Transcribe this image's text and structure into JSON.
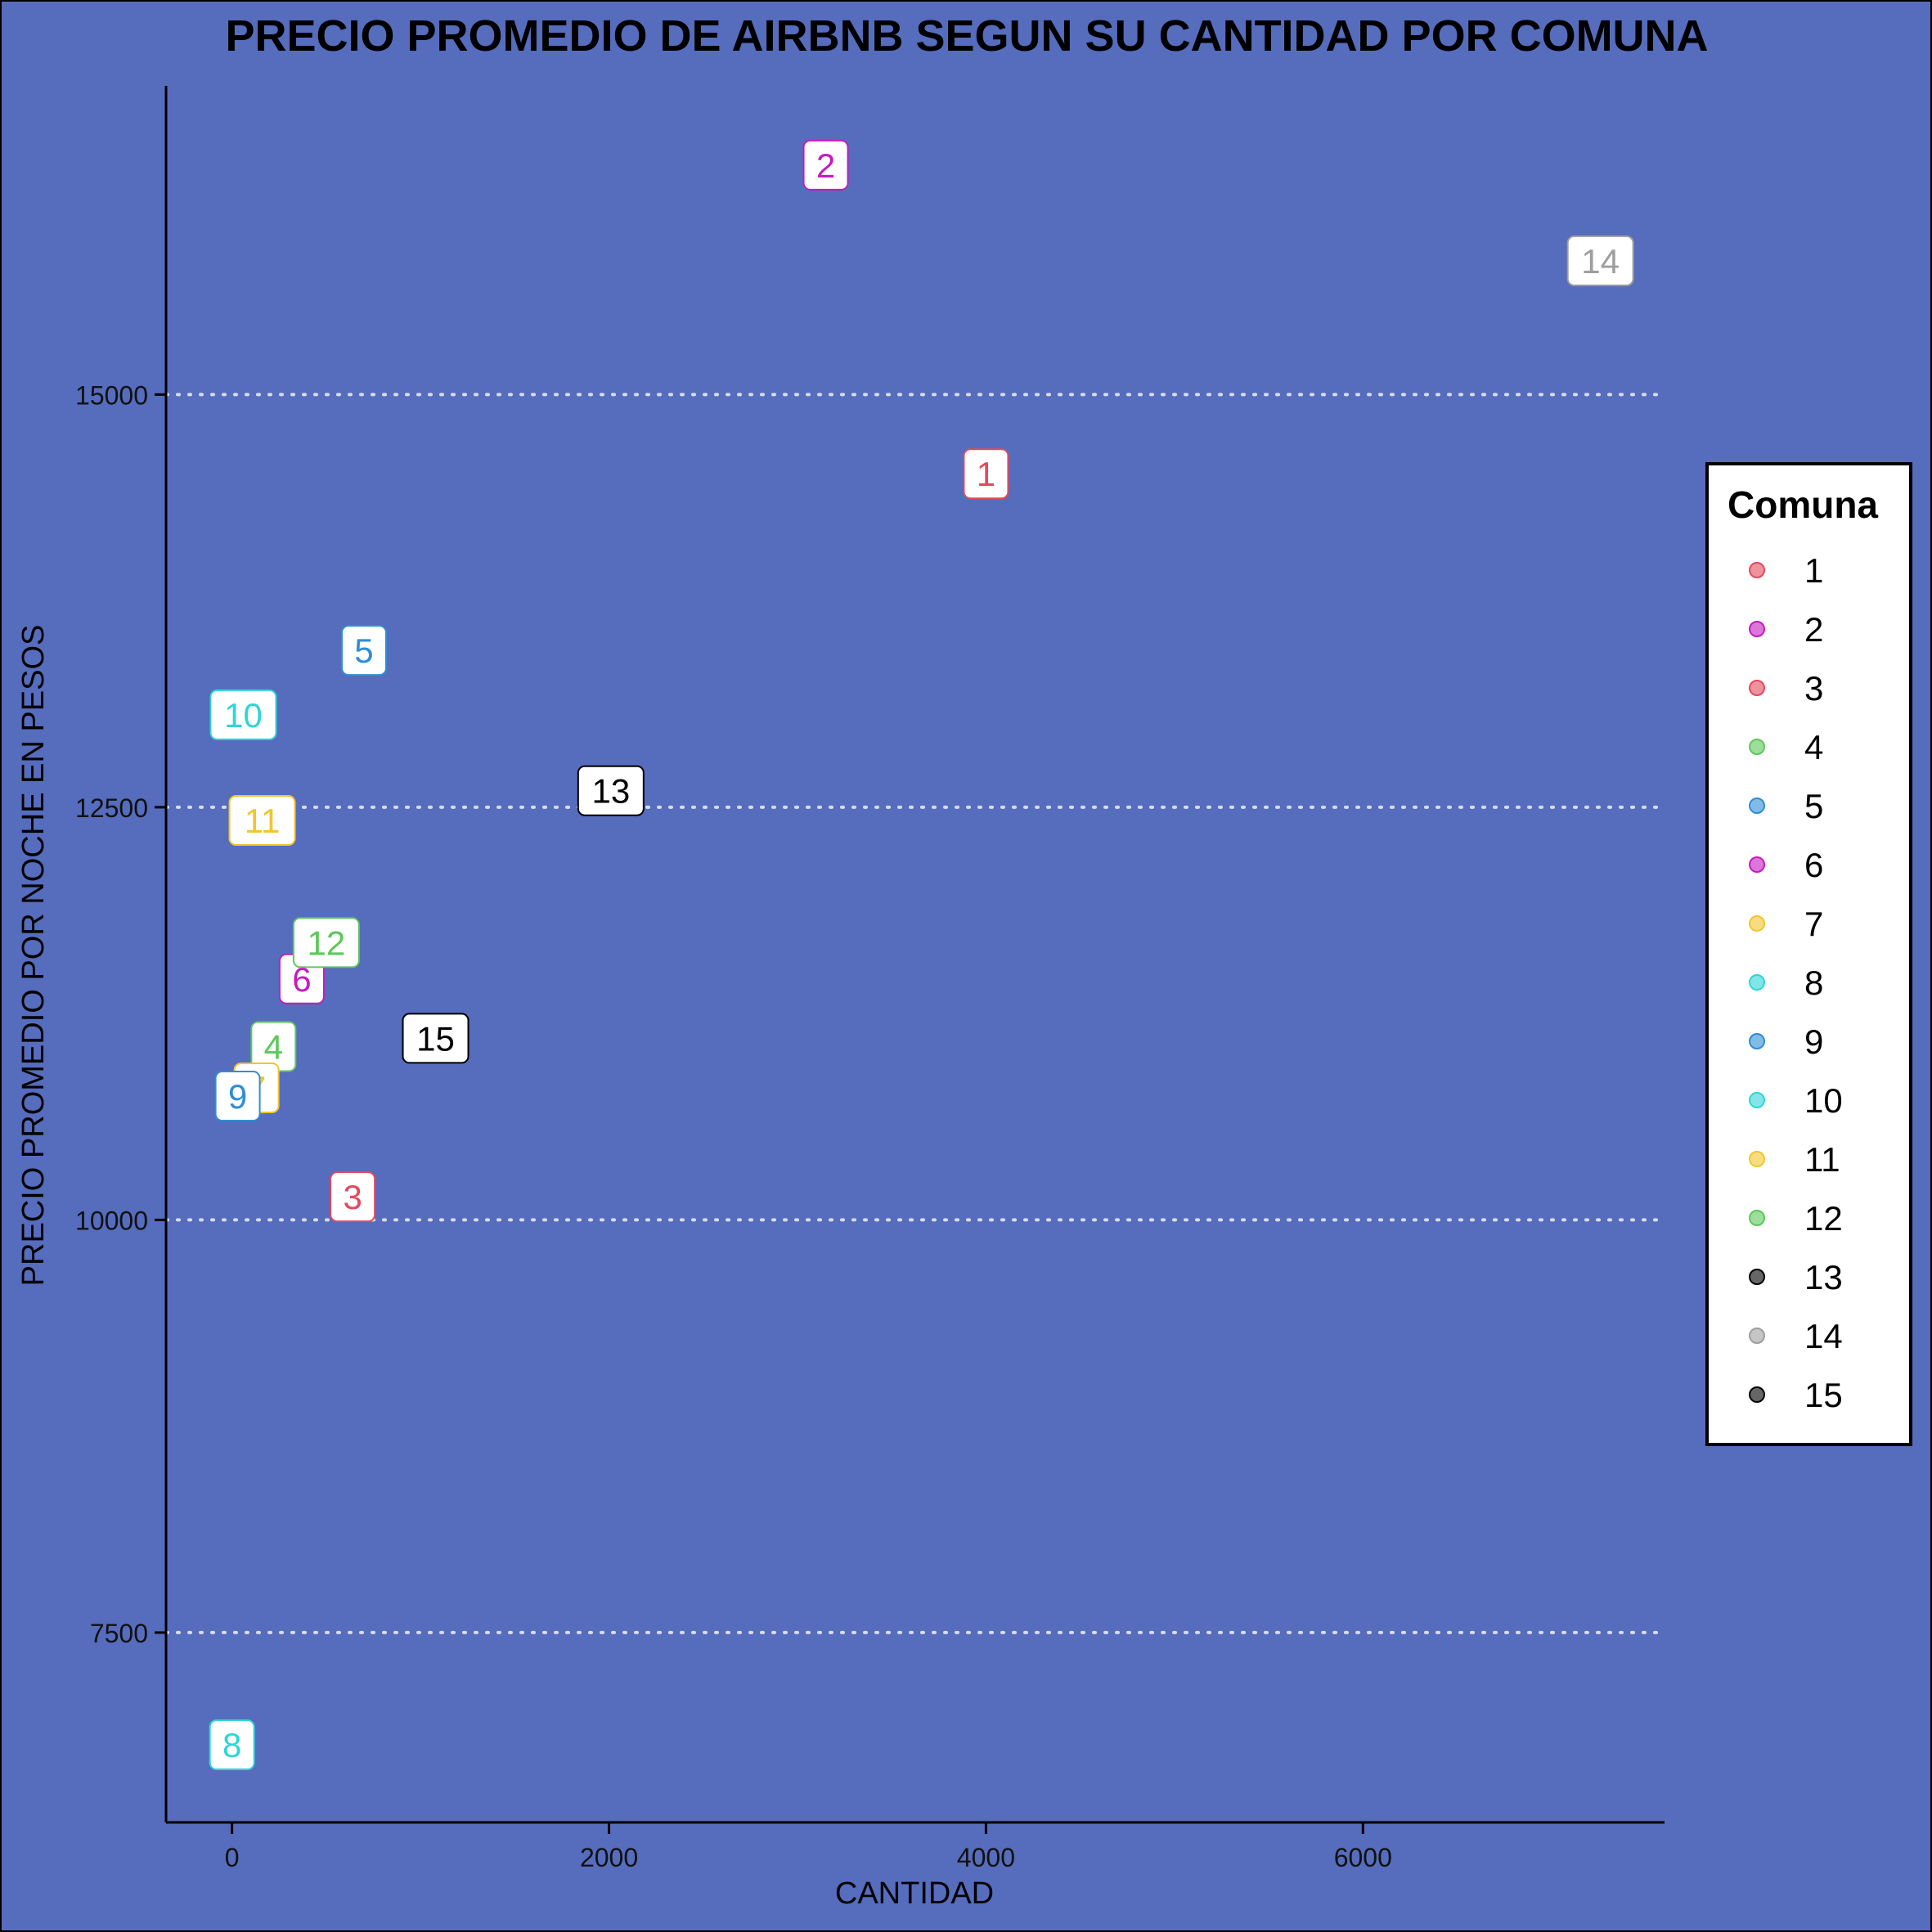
{
  "chart_data": {
    "type": "scatter",
    "title": "PRECIO PROMEDIO DE AIRBNB SEGUN SU CANTIDAD POR COMUNA",
    "xlabel": "CANTIDAD",
    "ylabel": "PRECIO PROMEDIO POR NOCHE EN PESOS",
    "xlim": [
      -350,
      7600
    ],
    "ylim": [
      6350,
      16870
    ],
    "x_ticks": [
      0,
      2000,
      4000,
      6000
    ],
    "y_ticks": [
      7500,
      10000,
      12500,
      15000
    ],
    "x_tick_labels": [
      "0",
      "2000",
      "4000",
      "6000"
    ],
    "y_tick_labels": [
      "7500",
      "10000",
      "12500",
      "15000"
    ],
    "grid": "horizontal dotted at y ticks",
    "legend": {
      "title": "Comuna",
      "position": "right"
    },
    "points": [
      {
        "label": "1",
        "x": 4000,
        "y": 14520,
        "color": "#E34A5C"
      },
      {
        "label": "2",
        "x": 3150,
        "y": 16390,
        "color": "#C51BC0"
      },
      {
        "label": "3",
        "x": 640,
        "y": 10140,
        "color": "#E34A5C"
      },
      {
        "label": "4",
        "x": 220,
        "y": 11050,
        "color": "#5CC85A"
      },
      {
        "label": "5",
        "x": 700,
        "y": 13450,
        "color": "#2E8ED6"
      },
      {
        "label": "6",
        "x": 370,
        "y": 11460,
        "color": "#C51BC0"
      },
      {
        "label": "7",
        "x": 130,
        "y": 10800,
        "color": "#F2C52C"
      },
      {
        "label": "8",
        "x": 0,
        "y": 6820,
        "color": "#2ED6D6"
      },
      {
        "label": "9",
        "x": 30,
        "y": 10750,
        "color": "#2E8ED6"
      },
      {
        "label": "10",
        "x": 60,
        "y": 13060,
        "color": "#2ED6D6"
      },
      {
        "label": "11",
        "x": 160,
        "y": 12420,
        "color": "#F2C52C"
      },
      {
        "label": "12",
        "x": 500,
        "y": 11680,
        "color": "#5CC85A"
      },
      {
        "label": "13",
        "x": 2010,
        "y": 12600,
        "color": "#000000"
      },
      {
        "label": "14",
        "x": 7260,
        "y": 15810,
        "color": "#9E9E9E"
      },
      {
        "label": "15",
        "x": 1080,
        "y": 11100,
        "color": "#000000"
      }
    ],
    "legend_entries": [
      {
        "label": "1",
        "color": "#E34A5C"
      },
      {
        "label": "2",
        "color": "#C51BC0"
      },
      {
        "label": "3",
        "color": "#E34A5C"
      },
      {
        "label": "4",
        "color": "#5CC85A"
      },
      {
        "label": "5",
        "color": "#2E8ED6"
      },
      {
        "label": "6",
        "color": "#C51BC0"
      },
      {
        "label": "7",
        "color": "#F2C52C"
      },
      {
        "label": "8",
        "color": "#2ED6D6"
      },
      {
        "label": "9",
        "color": "#2E8ED6"
      },
      {
        "label": "10",
        "color": "#2ED6D6"
      },
      {
        "label": "11",
        "color": "#F2C52C"
      },
      {
        "label": "12",
        "color": "#5CC85A"
      },
      {
        "label": "13",
        "color": "#000000"
      },
      {
        "label": "14",
        "color": "#9E9E9E"
      },
      {
        "label": "15",
        "color": "#000000"
      }
    ],
    "colors": {
      "background": "#566CBD",
      "axis": "#000000",
      "grid": "#D8DCEB",
      "label_fill": "#FFFFFF"
    }
  }
}
